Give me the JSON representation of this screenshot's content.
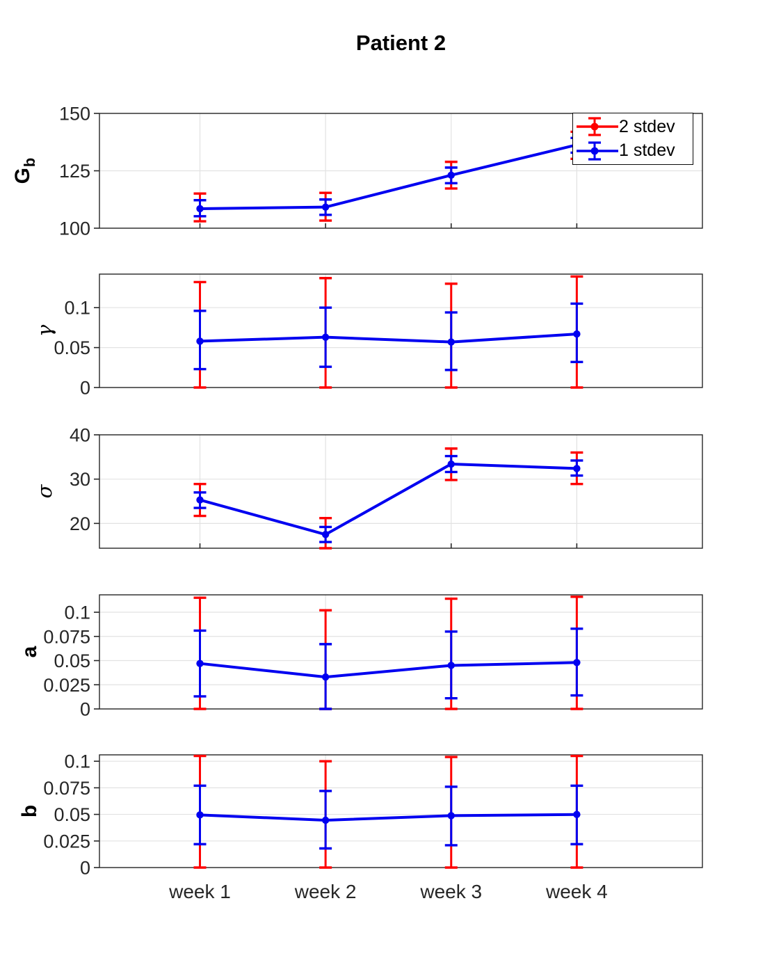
{
  "title": "Patient 2",
  "legend": {
    "items": [
      {
        "label": "2 stdev",
        "color": "#fe0000",
        "icon": "errorbar-symbol"
      },
      {
        "label": "1 stdev",
        "color": "#0000f0",
        "icon": "errorbar-symbol"
      }
    ]
  },
  "colors": {
    "stdev2": "#fe0000",
    "stdev1": "#0000f0",
    "grid": "#e2e2e2",
    "axis": "#262626",
    "tick_label": "#262626",
    "background": "#ffffff"
  },
  "chart_data": {
    "type": "line",
    "title": "Patient 2",
    "categories": [
      "week 1",
      "week 2",
      "week 3",
      "week 4"
    ],
    "x": [
      1,
      2,
      3,
      4
    ],
    "xlim": [
      0.2,
      5.0
    ],
    "grid": true,
    "legend_position": "top-right",
    "panels": [
      {
        "name": "Gb",
        "ylabel": {
          "text": "G",
          "sub": "b",
          "bold": true,
          "italic": false
        },
        "ylim": [
          100,
          150
        ],
        "yticks": [
          100,
          125,
          150
        ],
        "ytick_labels": [
          "100",
          "125",
          "150"
        ],
        "series": [
          {
            "name": "center",
            "values": [
              108.5,
              109.2,
              123.1,
              136.3
            ]
          },
          {
            "name": "1 stdev low",
            "values": [
              105.2,
              105.8,
              119.6,
              132.9
            ]
          },
          {
            "name": "1 stdev high",
            "values": [
              112.2,
              112.5,
              126.4,
              139.3
            ]
          },
          {
            "name": "2 stdev low",
            "values": [
              103.0,
              103.3,
              117.3,
              130.2
            ]
          },
          {
            "name": "2 stdev high",
            "values": [
              115.1,
              115.4,
              128.9,
              142.0
            ]
          }
        ]
      },
      {
        "name": "gamma",
        "ylabel": {
          "text": "γ",
          "sub": "",
          "bold": false,
          "italic": true
        },
        "ylim": [
          0,
          0.142
        ],
        "yticks": [
          0,
          0.05,
          0.1
        ],
        "ytick_labels": [
          "0",
          "0.05",
          "0.1"
        ],
        "series": [
          {
            "name": "center",
            "values": [
              0.058,
              0.063,
              0.057,
              0.067
            ]
          },
          {
            "name": "1 stdev low",
            "values": [
              0.023,
              0.026,
              0.022,
              0.032
            ]
          },
          {
            "name": "1 stdev high",
            "values": [
              0.096,
              0.1,
              0.094,
              0.105
            ]
          },
          {
            "name": "2 stdev low",
            "values": [
              0.0,
              0.0,
              0.0,
              0.0
            ]
          },
          {
            "name": "2 stdev high",
            "values": [
              0.132,
              0.137,
              0.13,
              0.139
            ]
          }
        ]
      },
      {
        "name": "sigma",
        "ylabel": {
          "text": "σ",
          "sub": "",
          "bold": false,
          "italic": true
        },
        "ylim": [
          14.4,
          40
        ],
        "yticks": [
          20,
          30,
          40
        ],
        "ytick_labels": [
          "20",
          "30",
          "40"
        ],
        "series": [
          {
            "name": "center",
            "values": [
              25.3,
              17.5,
              33.4,
              32.4
            ]
          },
          {
            "name": "1 stdev low",
            "values": [
              23.5,
              15.8,
              31.6,
              30.8
            ]
          },
          {
            "name": "1 stdev high",
            "values": [
              27.0,
              19.2,
              35.2,
              34.2
            ]
          },
          {
            "name": "2 stdev low",
            "values": [
              21.7,
              14.0,
              29.8,
              28.9
            ]
          },
          {
            "name": "2 stdev high",
            "values": [
              28.9,
              21.2,
              36.9,
              36.0
            ]
          }
        ]
      },
      {
        "name": "a",
        "ylabel": {
          "text": "a",
          "sub": "",
          "bold": true,
          "italic": false
        },
        "ylim": [
          0,
          0.118
        ],
        "yticks": [
          0,
          0.025,
          0.05,
          0.075,
          0.1
        ],
        "ytick_labels": [
          "0",
          "0.025",
          "0.05",
          "0.075",
          "0.1"
        ],
        "series": [
          {
            "name": "center",
            "values": [
              0.047,
              0.033,
              0.045,
              0.048
            ]
          },
          {
            "name": "1 stdev low",
            "values": [
              0.013,
              0.0,
              0.011,
              0.014
            ]
          },
          {
            "name": "1 stdev high",
            "values": [
              0.081,
              0.067,
              0.08,
              0.083
            ]
          },
          {
            "name": "2 stdev low",
            "values": [
              0.0,
              0.0,
              0.0,
              0.0
            ]
          },
          {
            "name": "2 stdev high",
            "values": [
              0.115,
              0.102,
              0.114,
              0.116
            ]
          }
        ]
      },
      {
        "name": "b",
        "ylabel": {
          "text": "b",
          "sub": "",
          "bold": true,
          "italic": false
        },
        "ylim": [
          0,
          0.106
        ],
        "yticks": [
          0,
          0.025,
          0.05,
          0.075,
          0.1
        ],
        "ytick_labels": [
          "0",
          "0.025",
          "0.05",
          "0.075",
          "0.1"
        ],
        "series": [
          {
            "name": "center",
            "values": [
              0.0495,
              0.0445,
              0.0488,
              0.0499
            ]
          },
          {
            "name": "1 stdev low",
            "values": [
              0.022,
              0.018,
              0.021,
              0.022
            ]
          },
          {
            "name": "1 stdev high",
            "values": [
              0.077,
              0.072,
              0.076,
              0.077
            ]
          },
          {
            "name": "2 stdev low",
            "values": [
              0.0,
              0.0,
              0.0,
              0.0
            ]
          },
          {
            "name": "2 stdev high",
            "values": [
              0.105,
              0.1,
              0.104,
              0.105
            ]
          }
        ]
      }
    ]
  }
}
